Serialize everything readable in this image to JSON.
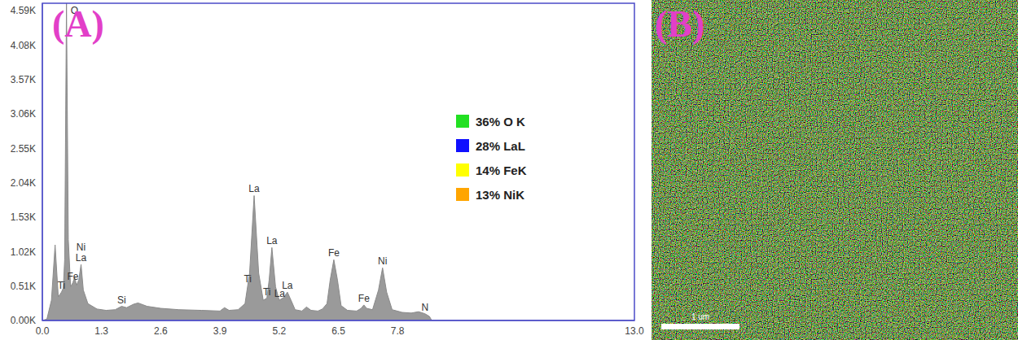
{
  "chart_data": {
    "type": "area",
    "color": "#9a9a9a",
    "grid": false,
    "x": [
      0,
      0.1,
      0.2,
      0.28,
      0.35,
      0.42,
      0.46,
      0.49,
      0.53,
      0.57,
      0.62,
      0.67,
      0.71,
      0.75,
      0.8,
      0.85,
      0.9,
      1.0,
      1.2,
      1.4,
      1.6,
      1.74,
      1.85,
      2.0,
      2.1,
      2.3,
      2.6,
      3.0,
      3.5,
      3.9,
      4.0,
      4.1,
      4.3,
      4.45,
      4.55,
      4.65,
      4.75,
      4.85,
      4.93,
      4.98,
      5.04,
      5.12,
      5.2,
      5.3,
      5.38,
      5.46,
      5.55,
      5.7,
      5.8,
      5.9,
      6.05,
      6.15,
      6.25,
      6.32,
      6.4,
      6.48,
      6.56,
      6.7,
      6.9,
      7.0,
      7.06,
      7.12,
      7.25,
      7.38,
      7.47,
      7.56,
      7.68,
      7.9,
      8.1,
      8.26,
      8.4,
      8.5,
      8.55,
      13.0
    ],
    "values": [
      0,
      20,
      300,
      1120,
      350,
      420,
      480,
      900,
      4700,
      1200,
      500,
      560,
      640,
      520,
      600,
      830,
      450,
      250,
      170,
      150,
      160,
      210,
      190,
      240,
      260,
      210,
      180,
      160,
      150,
      140,
      190,
      150,
      160,
      250,
      700,
      1850,
      700,
      300,
      330,
      600,
      1080,
      500,
      300,
      340,
      420,
      300,
      160,
      140,
      200,
      150,
      140,
      170,
      250,
      600,
      900,
      600,
      220,
      150,
      140,
      180,
      230,
      180,
      160,
      450,
      780,
      420,
      160,
      120,
      110,
      130,
      100,
      60,
      0,
      0
    ],
    "xlim": [
      0,
      13.0
    ],
    "xticks": [
      {
        "value": 0,
        "label": "0.0"
      },
      1.3,
      2.6,
      3.9,
      5.2,
      6.5,
      7.8,
      {
        "value": 13,
        "label": "13.0"
      }
    ],
    "ylim": [
      0,
      4700
    ],
    "yticks": [
      {
        "value": 0,
        "label": "0.00K"
      },
      {
        "value": 510,
        "label": "0.51K"
      },
      {
        "value": 1020,
        "label": "1.02K"
      },
      {
        "value": 1530,
        "label": "1.53K"
      },
      {
        "value": 2040,
        "label": "2.04K"
      },
      {
        "value": 2550,
        "label": "2.55K"
      },
      {
        "value": 3060,
        "label": "3.06K"
      },
      {
        "value": 3570,
        "label": "3.57K"
      },
      {
        "value": 4080,
        "label": "4.08K"
      },
      {
        "value": 4590,
        "label": "4.59K"
      }
    ],
    "peak_labels": [
      {
        "label": "O",
        "x": 0.53
      },
      {
        "label": "Ti",
        "x": 0.42
      },
      {
        "label": "Fe",
        "x": 0.67
      },
      {
        "label": "La",
        "x": 0.85
      },
      {
        "label": "Ni",
        "x": 0.85
      },
      {
        "label": "Si",
        "x": 1.74
      },
      {
        "label": "La",
        "x": 4.65
      },
      {
        "label": "Ti",
        "x": 4.51
      },
      {
        "label": "La",
        "x": 5.04
      },
      {
        "label": "Ti",
        "x": 4.93
      },
      {
        "label": "La",
        "x": 5.21
      },
      {
        "label": "La",
        "x": 5.38
      },
      {
        "label": "Fe",
        "x": 6.4
      },
      {
        "label": "Fe",
        "x": 7.06
      },
      {
        "label": "Ni",
        "x": 7.47
      },
      {
        "label": "N",
        "x": 8.4
      }
    ],
    "composition": [
      {
        "label": "36% O K",
        "color": "#22e022"
      },
      {
        "label": "28% LaL",
        "color": "#1010ff"
      },
      {
        "label": "14% FeK",
        "color": "#ffff00"
      },
      {
        "label": "13% NiK",
        "color": "#ffa500"
      }
    ]
  },
  "panel_labels": [
    "(A)",
    "(B)"
  ],
  "map": {
    "scale_bar": "1 um"
  }
}
